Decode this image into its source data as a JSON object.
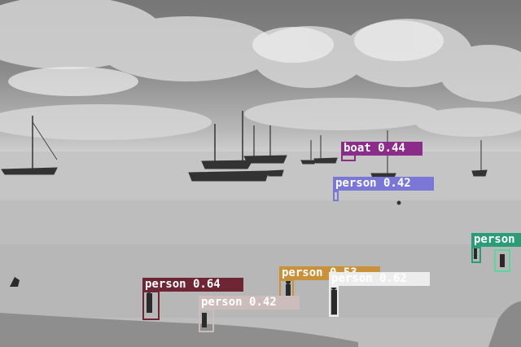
{
  "detections": [
    {
      "label": "boat 0.44",
      "color": "#8b2c8a"
    },
    {
      "label": "person 0.42",
      "color": "#7b77d6"
    },
    {
      "label": "person",
      "color": "#2a9d78"
    },
    {
      "label": "person 0.53",
      "color": "#c8913a"
    },
    {
      "label": "person 0.62",
      "color": "#ededed"
    },
    {
      "label": "person 0.64",
      "color": "#6e2634"
    },
    {
      "label": "person 0.42",
      "color": "#cdbcbc"
    },
    {
      "color": "#59d69b"
    }
  ]
}
